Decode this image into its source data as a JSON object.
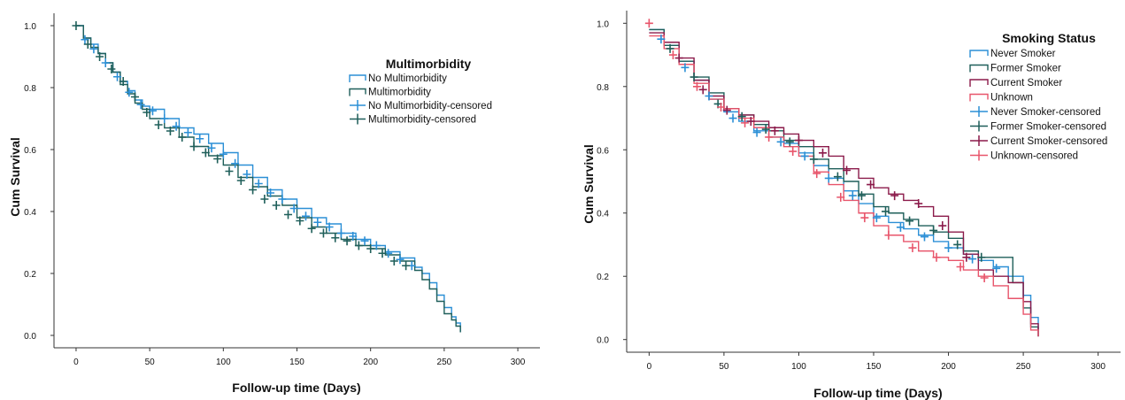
{
  "chart_data": [
    {
      "type": "line",
      "step": true,
      "xlabel": "Follow-up time (Days)",
      "ylabel": "Cum Survival",
      "xlim": [
        -15,
        315
      ],
      "ylim": [
        -0.04,
        1.04
      ],
      "xticks": [
        0,
        50,
        100,
        150,
        200,
        250,
        300
      ],
      "yticks": [
        0.0,
        0.2,
        0.4,
        0.6,
        0.8,
        1.0
      ],
      "ytick_labels": [
        "0.0",
        "0.2",
        "0.4",
        "0.6",
        "0.8",
        "1.0"
      ],
      "grid": false,
      "legend": {
        "title": "Multimorbidity",
        "position": "top-right",
        "entries": [
          "No Multimorbidity",
          "Multimorbidity",
          "No Multimorbidity-censored",
          "Multimorbidity-censored"
        ]
      },
      "series": [
        {
          "name": "No Multimorbidity",
          "color": "#2b8fd6",
          "x": [
            0,
            5,
            10,
            15,
            20,
            25,
            30,
            35,
            40,
            45,
            50,
            60,
            70,
            80,
            90,
            100,
            110,
            120,
            130,
            140,
            150,
            160,
            170,
            180,
            190,
            200,
            210,
            220,
            230,
            235,
            240,
            245,
            250,
            255,
            258,
            261
          ],
          "y": [
            1.0,
            0.96,
            0.94,
            0.91,
            0.88,
            0.85,
            0.82,
            0.79,
            0.76,
            0.74,
            0.73,
            0.7,
            0.67,
            0.65,
            0.62,
            0.59,
            0.55,
            0.51,
            0.47,
            0.44,
            0.41,
            0.38,
            0.36,
            0.33,
            0.31,
            0.29,
            0.27,
            0.25,
            0.22,
            0.2,
            0.17,
            0.13,
            0.09,
            0.06,
            0.04,
            0.01
          ]
        },
        {
          "name": "Multimorbidity",
          "color": "#1f5f5a",
          "x": [
            0,
            5,
            10,
            15,
            20,
            25,
            30,
            35,
            40,
            45,
            50,
            60,
            70,
            80,
            90,
            100,
            110,
            120,
            130,
            140,
            150,
            160,
            170,
            180,
            190,
            200,
            210,
            220,
            230,
            235,
            240,
            245,
            250,
            255,
            258,
            261
          ],
          "y": [
            1.0,
            0.96,
            0.93,
            0.91,
            0.88,
            0.85,
            0.81,
            0.78,
            0.75,
            0.73,
            0.7,
            0.67,
            0.64,
            0.61,
            0.58,
            0.55,
            0.51,
            0.48,
            0.45,
            0.42,
            0.38,
            0.35,
            0.33,
            0.31,
            0.29,
            0.28,
            0.26,
            0.24,
            0.21,
            0.18,
            0.15,
            0.11,
            0.07,
            0.05,
            0.03,
            0.01
          ]
        }
      ],
      "censored": [
        {
          "name": "No Multimorbidity-censored",
          "color": "#2b8fd6",
          "x": [
            6,
            12,
            20,
            28,
            36,
            44,
            52,
            60,
            68,
            76,
            84,
            92,
            100,
            108,
            116,
            124,
            132,
            140,
            148,
            156,
            164,
            172,
            180,
            188,
            196,
            204,
            212,
            220,
            228
          ],
          "y": [
            0.955,
            0.925,
            0.88,
            0.835,
            0.785,
            0.745,
            0.725,
            0.7,
            0.675,
            0.655,
            0.635,
            0.605,
            0.585,
            0.555,
            0.52,
            0.49,
            0.46,
            0.44,
            0.41,
            0.385,
            0.365,
            0.35,
            0.33,
            0.32,
            0.305,
            0.29,
            0.265,
            0.245,
            0.225
          ]
        },
        {
          "name": "Multimorbidity-censored",
          "color": "#1f5f5a",
          "x": [
            0,
            8,
            16,
            24,
            32,
            40,
            48,
            56,
            64,
            72,
            80,
            88,
            96,
            104,
            112,
            120,
            128,
            136,
            144,
            152,
            160,
            168,
            176,
            184,
            192,
            200,
            208,
            216,
            224
          ],
          "y": [
            1.0,
            0.94,
            0.9,
            0.86,
            0.82,
            0.77,
            0.72,
            0.68,
            0.66,
            0.64,
            0.61,
            0.59,
            0.57,
            0.53,
            0.5,
            0.47,
            0.44,
            0.42,
            0.39,
            0.37,
            0.345,
            0.33,
            0.315,
            0.305,
            0.29,
            0.28,
            0.265,
            0.24,
            0.225
          ]
        }
      ]
    },
    {
      "type": "line",
      "step": true,
      "xlabel": "Follow-up time (Days)",
      "ylabel": "Cum Survival",
      "xlim": [
        -15,
        315
      ],
      "ylim": [
        -0.04,
        1.04
      ],
      "xticks": [
        0,
        50,
        100,
        150,
        200,
        250,
        300
      ],
      "yticks": [
        0.0,
        0.2,
        0.4,
        0.6,
        0.8,
        1.0
      ],
      "ytick_labels": [
        "0.0",
        "0.2",
        "0.4",
        "0.6",
        "0.8",
        "1.0"
      ],
      "grid": false,
      "legend": {
        "title": "Smoking Status",
        "position": "top-right",
        "entries": [
          "Never Smoker",
          "Former Smoker",
          "Current Smoker",
          "Unknown",
          "Never Smoker-censored",
          "Former Smoker-censored",
          "Current Smoker-censored",
          "Unknown-censored"
        ]
      },
      "series": [
        {
          "name": "Never Smoker",
          "color": "#2b8fd6",
          "x": [
            0,
            10,
            20,
            30,
            40,
            50,
            60,
            70,
            80,
            90,
            100,
            110,
            120,
            130,
            140,
            150,
            160,
            170,
            180,
            190,
            200,
            210,
            220,
            230,
            240,
            250,
            255,
            260
          ],
          "y": [
            0.98,
            0.93,
            0.88,
            0.82,
            0.76,
            0.72,
            0.69,
            0.66,
            0.64,
            0.62,
            0.59,
            0.55,
            0.51,
            0.47,
            0.43,
            0.39,
            0.37,
            0.35,
            0.33,
            0.31,
            0.29,
            0.27,
            0.25,
            0.23,
            0.2,
            0.14,
            0.07,
            0.01
          ]
        },
        {
          "name": "Former Smoker",
          "color": "#1f5f5a",
          "x": [
            0,
            10,
            20,
            30,
            40,
            50,
            60,
            70,
            80,
            90,
            100,
            110,
            120,
            130,
            140,
            150,
            160,
            170,
            180,
            190,
            200,
            210,
            220,
            230,
            243,
            250,
            255,
            260
          ],
          "y": [
            0.98,
            0.93,
            0.88,
            0.83,
            0.78,
            0.73,
            0.71,
            0.68,
            0.66,
            0.63,
            0.61,
            0.57,
            0.54,
            0.5,
            0.46,
            0.42,
            0.4,
            0.38,
            0.36,
            0.34,
            0.32,
            0.28,
            0.26,
            0.26,
            0.18,
            0.1,
            0.04,
            0.01
          ]
        },
        {
          "name": "Current Smoker",
          "color": "#8b1a4a",
          "x": [
            0,
            10,
            20,
            30,
            40,
            50,
            60,
            70,
            80,
            90,
            100,
            110,
            120,
            130,
            140,
            150,
            160,
            170,
            180,
            190,
            200,
            210,
            220,
            230,
            240,
            250,
            255,
            260
          ],
          "y": [
            0.97,
            0.94,
            0.89,
            0.82,
            0.77,
            0.73,
            0.71,
            0.69,
            0.67,
            0.65,
            0.63,
            0.61,
            0.58,
            0.54,
            0.51,
            0.48,
            0.46,
            0.44,
            0.42,
            0.39,
            0.34,
            0.27,
            0.22,
            0.2,
            0.18,
            0.12,
            0.05,
            0.01
          ]
        },
        {
          "name": "Unknown",
          "color": "#e8556b",
          "x": [
            0,
            10,
            20,
            30,
            40,
            50,
            60,
            70,
            80,
            90,
            100,
            110,
            120,
            130,
            140,
            150,
            160,
            170,
            180,
            190,
            200,
            210,
            220,
            230,
            240,
            250,
            255,
            260
          ],
          "y": [
            0.96,
            0.92,
            0.87,
            0.81,
            0.76,
            0.73,
            0.7,
            0.67,
            0.64,
            0.61,
            0.58,
            0.53,
            0.49,
            0.44,
            0.4,
            0.36,
            0.33,
            0.31,
            0.28,
            0.26,
            0.25,
            0.22,
            0.2,
            0.17,
            0.13,
            0.08,
            0.03,
            0.01
          ]
        }
      ],
      "censored": [
        {
          "name": "Never Smoker-censored",
          "color": "#2b8fd6",
          "x": [
            8,
            24,
            40,
            56,
            72,
            88,
            104,
            120,
            136,
            152,
            168,
            184,
            200,
            216,
            232
          ],
          "y": [
            0.95,
            0.86,
            0.77,
            0.7,
            0.655,
            0.625,
            0.58,
            0.51,
            0.455,
            0.385,
            0.355,
            0.325,
            0.29,
            0.255,
            0.225
          ]
        },
        {
          "name": "Former Smoker-censored",
          "color": "#1f5f5a",
          "x": [
            14,
            30,
            46,
            62,
            78,
            94,
            110,
            126,
            142,
            158,
            174,
            190,
            206,
            222
          ],
          "y": [
            0.92,
            0.83,
            0.745,
            0.705,
            0.665,
            0.625,
            0.57,
            0.515,
            0.455,
            0.405,
            0.375,
            0.345,
            0.3,
            0.26
          ]
        },
        {
          "name": "Current Smoker-censored",
          "color": "#8b1a4a",
          "x": [
            20,
            36,
            52,
            68,
            84,
            100,
            116,
            132,
            148,
            164,
            180,
            196,
            212
          ],
          "y": [
            0.89,
            0.79,
            0.725,
            0.69,
            0.66,
            0.63,
            0.59,
            0.535,
            0.49,
            0.455,
            0.43,
            0.36,
            0.26
          ]
        },
        {
          "name": "Unknown-censored",
          "color": "#e8556b",
          "x": [
            0,
            16,
            32,
            48,
            64,
            80,
            96,
            112,
            128,
            144,
            160,
            176,
            192,
            208,
            224
          ],
          "y": [
            1.0,
            0.9,
            0.8,
            0.735,
            0.685,
            0.64,
            0.595,
            0.525,
            0.45,
            0.385,
            0.33,
            0.29,
            0.26,
            0.23,
            0.195
          ]
        }
      ]
    }
  ]
}
